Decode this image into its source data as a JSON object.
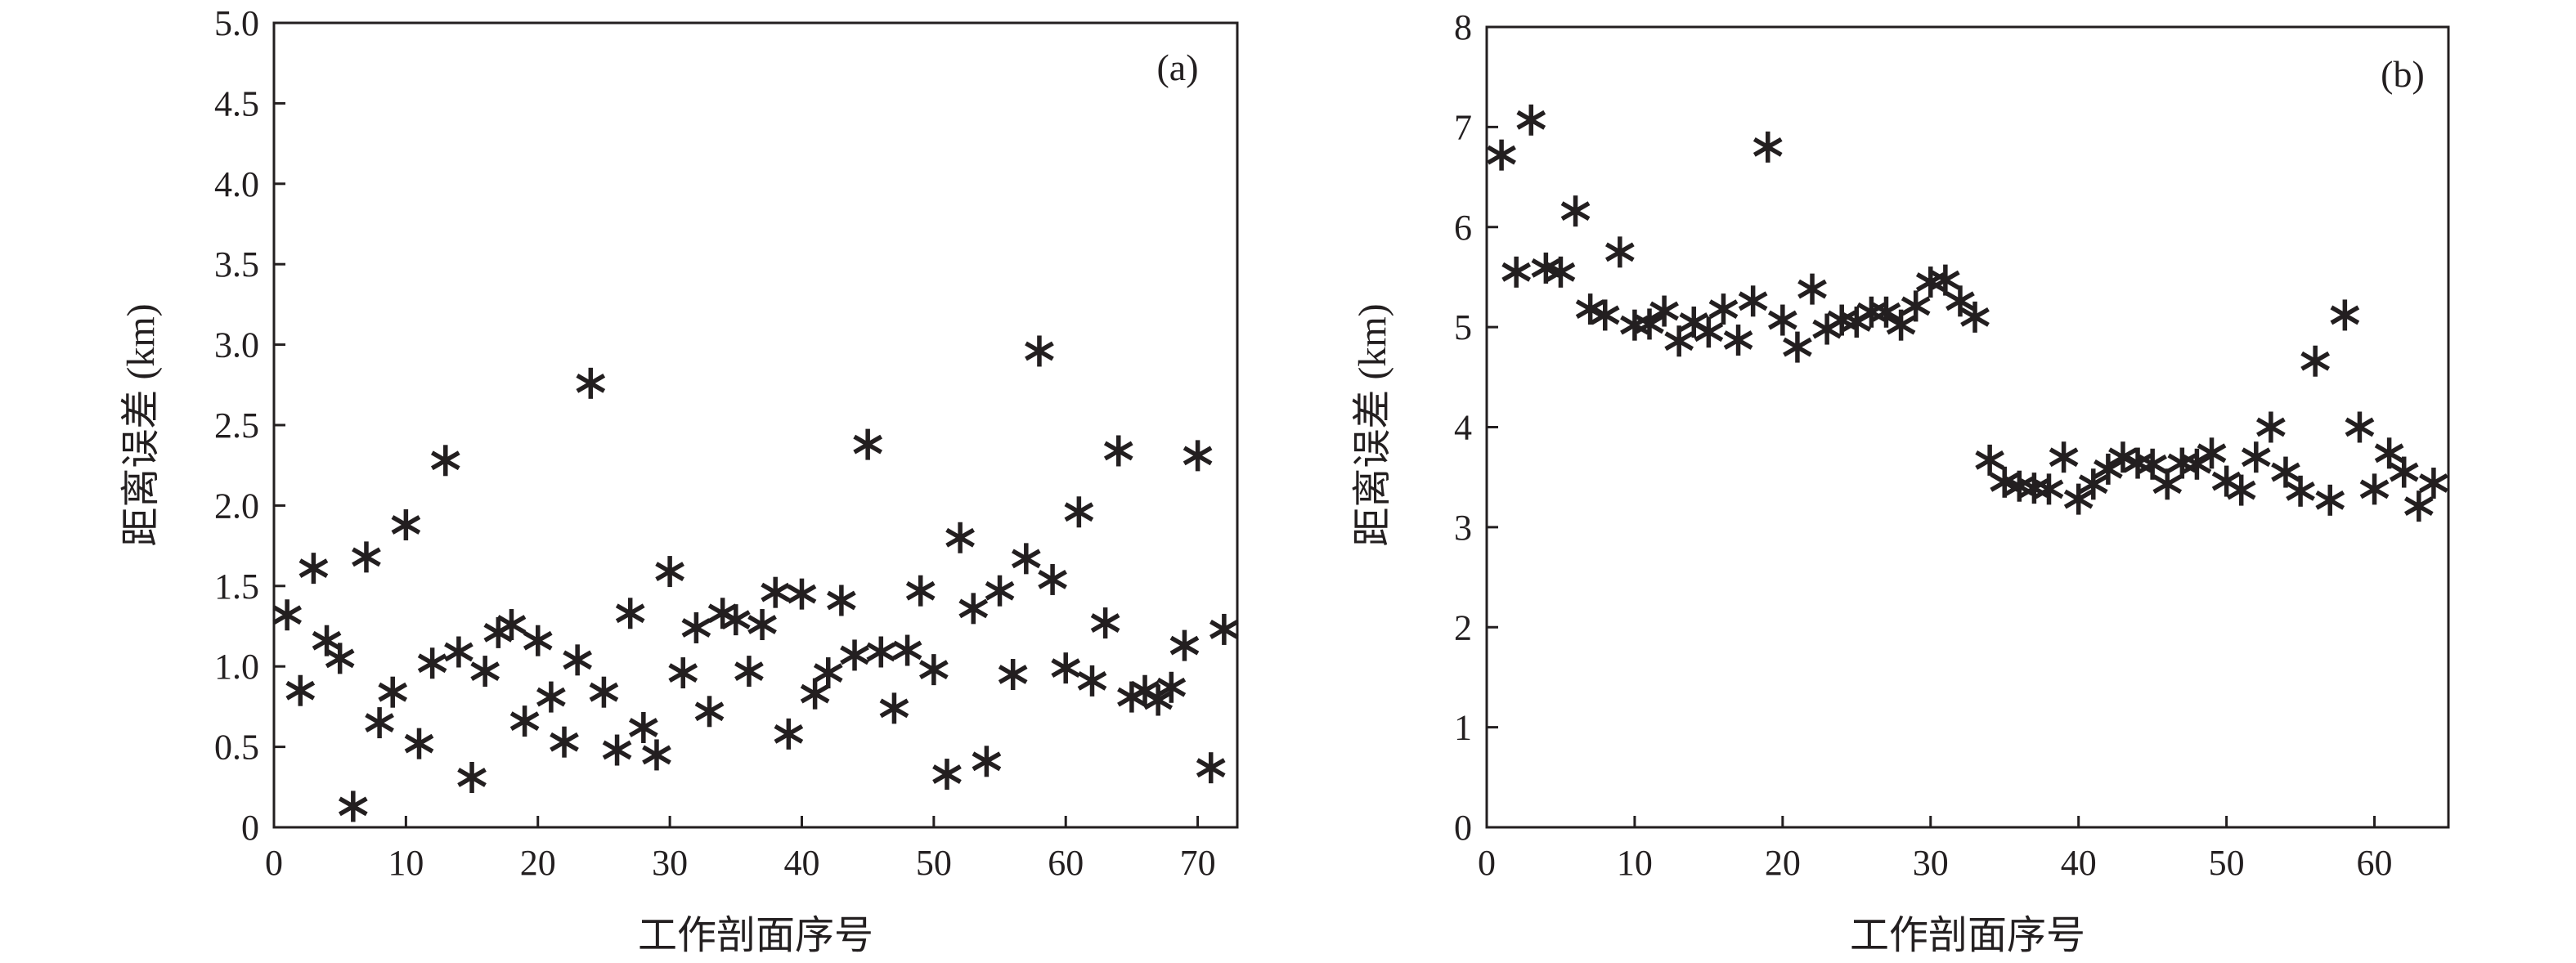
{
  "chart_data": [
    {
      "type": "scatter",
      "panel_label": "(a)",
      "xlabel": "工作剖面序号",
      "ylabel": "距离误差 (km)",
      "xlim": [
        0,
        73
      ],
      "ylim": [
        0,
        5.0
      ],
      "xticks": [
        "0",
        "10",
        "20",
        "30",
        "40",
        "50",
        "60",
        "70"
      ],
      "xtick_values": [
        0,
        10,
        20,
        30,
        40,
        50,
        60,
        70
      ],
      "yticks": [
        "0",
        "0.5",
        "1.0",
        "1.5",
        "2.0",
        "2.5",
        "3.0",
        "3.5",
        "4.0",
        "4.5",
        "5.0"
      ],
      "ytick_values": [
        0,
        0.5,
        1.0,
        1.5,
        2.0,
        2.5,
        3.0,
        3.5,
        4.0,
        4.5,
        5.0
      ],
      "marker": "asterisk",
      "grid": false,
      "series": [
        {
          "x": [
            1,
            2,
            3,
            4,
            5,
            6,
            7,
            8,
            9,
            10,
            11,
            12,
            13,
            14,
            15,
            16,
            17,
            18,
            19,
            20,
            21,
            22,
            23,
            24,
            25,
            26,
            27,
            28,
            29,
            30,
            31,
            32,
            33,
            34,
            35,
            36,
            37,
            38,
            39,
            40,
            41,
            42,
            43,
            44,
            45,
            46,
            47,
            48,
            49,
            50,
            51,
            52,
            53,
            54,
            55,
            56,
            57,
            58,
            59,
            60,
            61,
            62,
            63,
            64,
            65,
            66,
            67,
            68,
            69,
            70,
            71,
            72
          ],
          "y": [
            1.32,
            0.85,
            1.61,
            1.16,
            1.05,
            0.13,
            1.68,
            0.65,
            0.84,
            1.88,
            0.52,
            1.02,
            2.28,
            1.09,
            0.31,
            0.97,
            1.21,
            1.26,
            0.66,
            1.16,
            0.81,
            0.53,
            1.04,
            2.76,
            0.84,
            0.48,
            1.33,
            0.62,
            0.45,
            1.59,
            0.96,
            1.24,
            0.72,
            1.33,
            1.29,
            0.97,
            1.26,
            1.46,
            0.58,
            1.45,
            0.83,
            0.96,
            1.41,
            1.07,
            2.38,
            1.09,
            0.74,
            1.1,
            1.47,
            0.98,
            0.33,
            1.8,
            1.36,
            0.41,
            1.47,
            0.95,
            1.67,
            2.96,
            1.54,
            0.99,
            1.96,
            0.91,
            1.27,
            2.34,
            0.81,
            0.85,
            0.79,
            0.87,
            1.13,
            2.31,
            0.37,
            1.23
          ]
        }
      ]
    },
    {
      "type": "scatter",
      "panel_label": "(b)",
      "xlabel": "工作剖面序号",
      "ylabel": "距离误差 (km)",
      "xlim": [
        0,
        65
      ],
      "ylim": [
        0,
        8
      ],
      "xticks": [
        "0",
        "10",
        "20",
        "30",
        "40",
        "50",
        "60"
      ],
      "xtick_values": [
        0,
        10,
        20,
        30,
        40,
        50,
        60
      ],
      "yticks": [
        "0",
        "1",
        "2",
        "3",
        "4",
        "5",
        "6",
        "7",
        "8"
      ],
      "ytick_values": [
        0,
        1,
        2,
        3,
        4,
        5,
        6,
        7,
        8
      ],
      "marker": "asterisk",
      "grid": false,
      "series": [
        {
          "x": [
            1,
            2,
            3,
            4,
            5,
            6,
            7,
            8,
            9,
            10,
            11,
            12,
            13,
            14,
            15,
            16,
            17,
            18,
            19,
            20,
            21,
            22,
            23,
            24,
            25,
            26,
            27,
            28,
            29,
            30,
            31,
            32,
            33,
            34,
            35,
            36,
            37,
            38,
            39,
            40,
            41,
            42,
            43,
            44,
            45,
            46,
            47,
            48,
            49,
            50,
            51,
            52,
            53,
            54,
            55,
            56,
            57,
            58,
            59,
            60,
            61,
            62,
            63,
            64
          ],
          "y": [
            6.72,
            5.55,
            7.07,
            5.59,
            5.55,
            6.16,
            5.18,
            5.12,
            5.75,
            5.02,
            5.03,
            5.16,
            4.86,
            5.05,
            4.95,
            5.18,
            4.87,
            5.26,
            6.8,
            5.07,
            4.8,
            5.38,
            4.98,
            5.07,
            5.05,
            5.15,
            5.15,
            5.02,
            5.21,
            5.45,
            5.47,
            5.26,
            5.1,
            3.67,
            3.45,
            3.41,
            3.39,
            3.38,
            3.7,
            3.28,
            3.43,
            3.58,
            3.7,
            3.64,
            3.63,
            3.43,
            3.64,
            3.63,
            3.74,
            3.46,
            3.37,
            3.7,
            4.0,
            3.55,
            3.36,
            4.66,
            3.27,
            5.12,
            4.0,
            3.38,
            3.74,
            3.55,
            3.21,
            3.44
          ]
        }
      ]
    }
  ]
}
